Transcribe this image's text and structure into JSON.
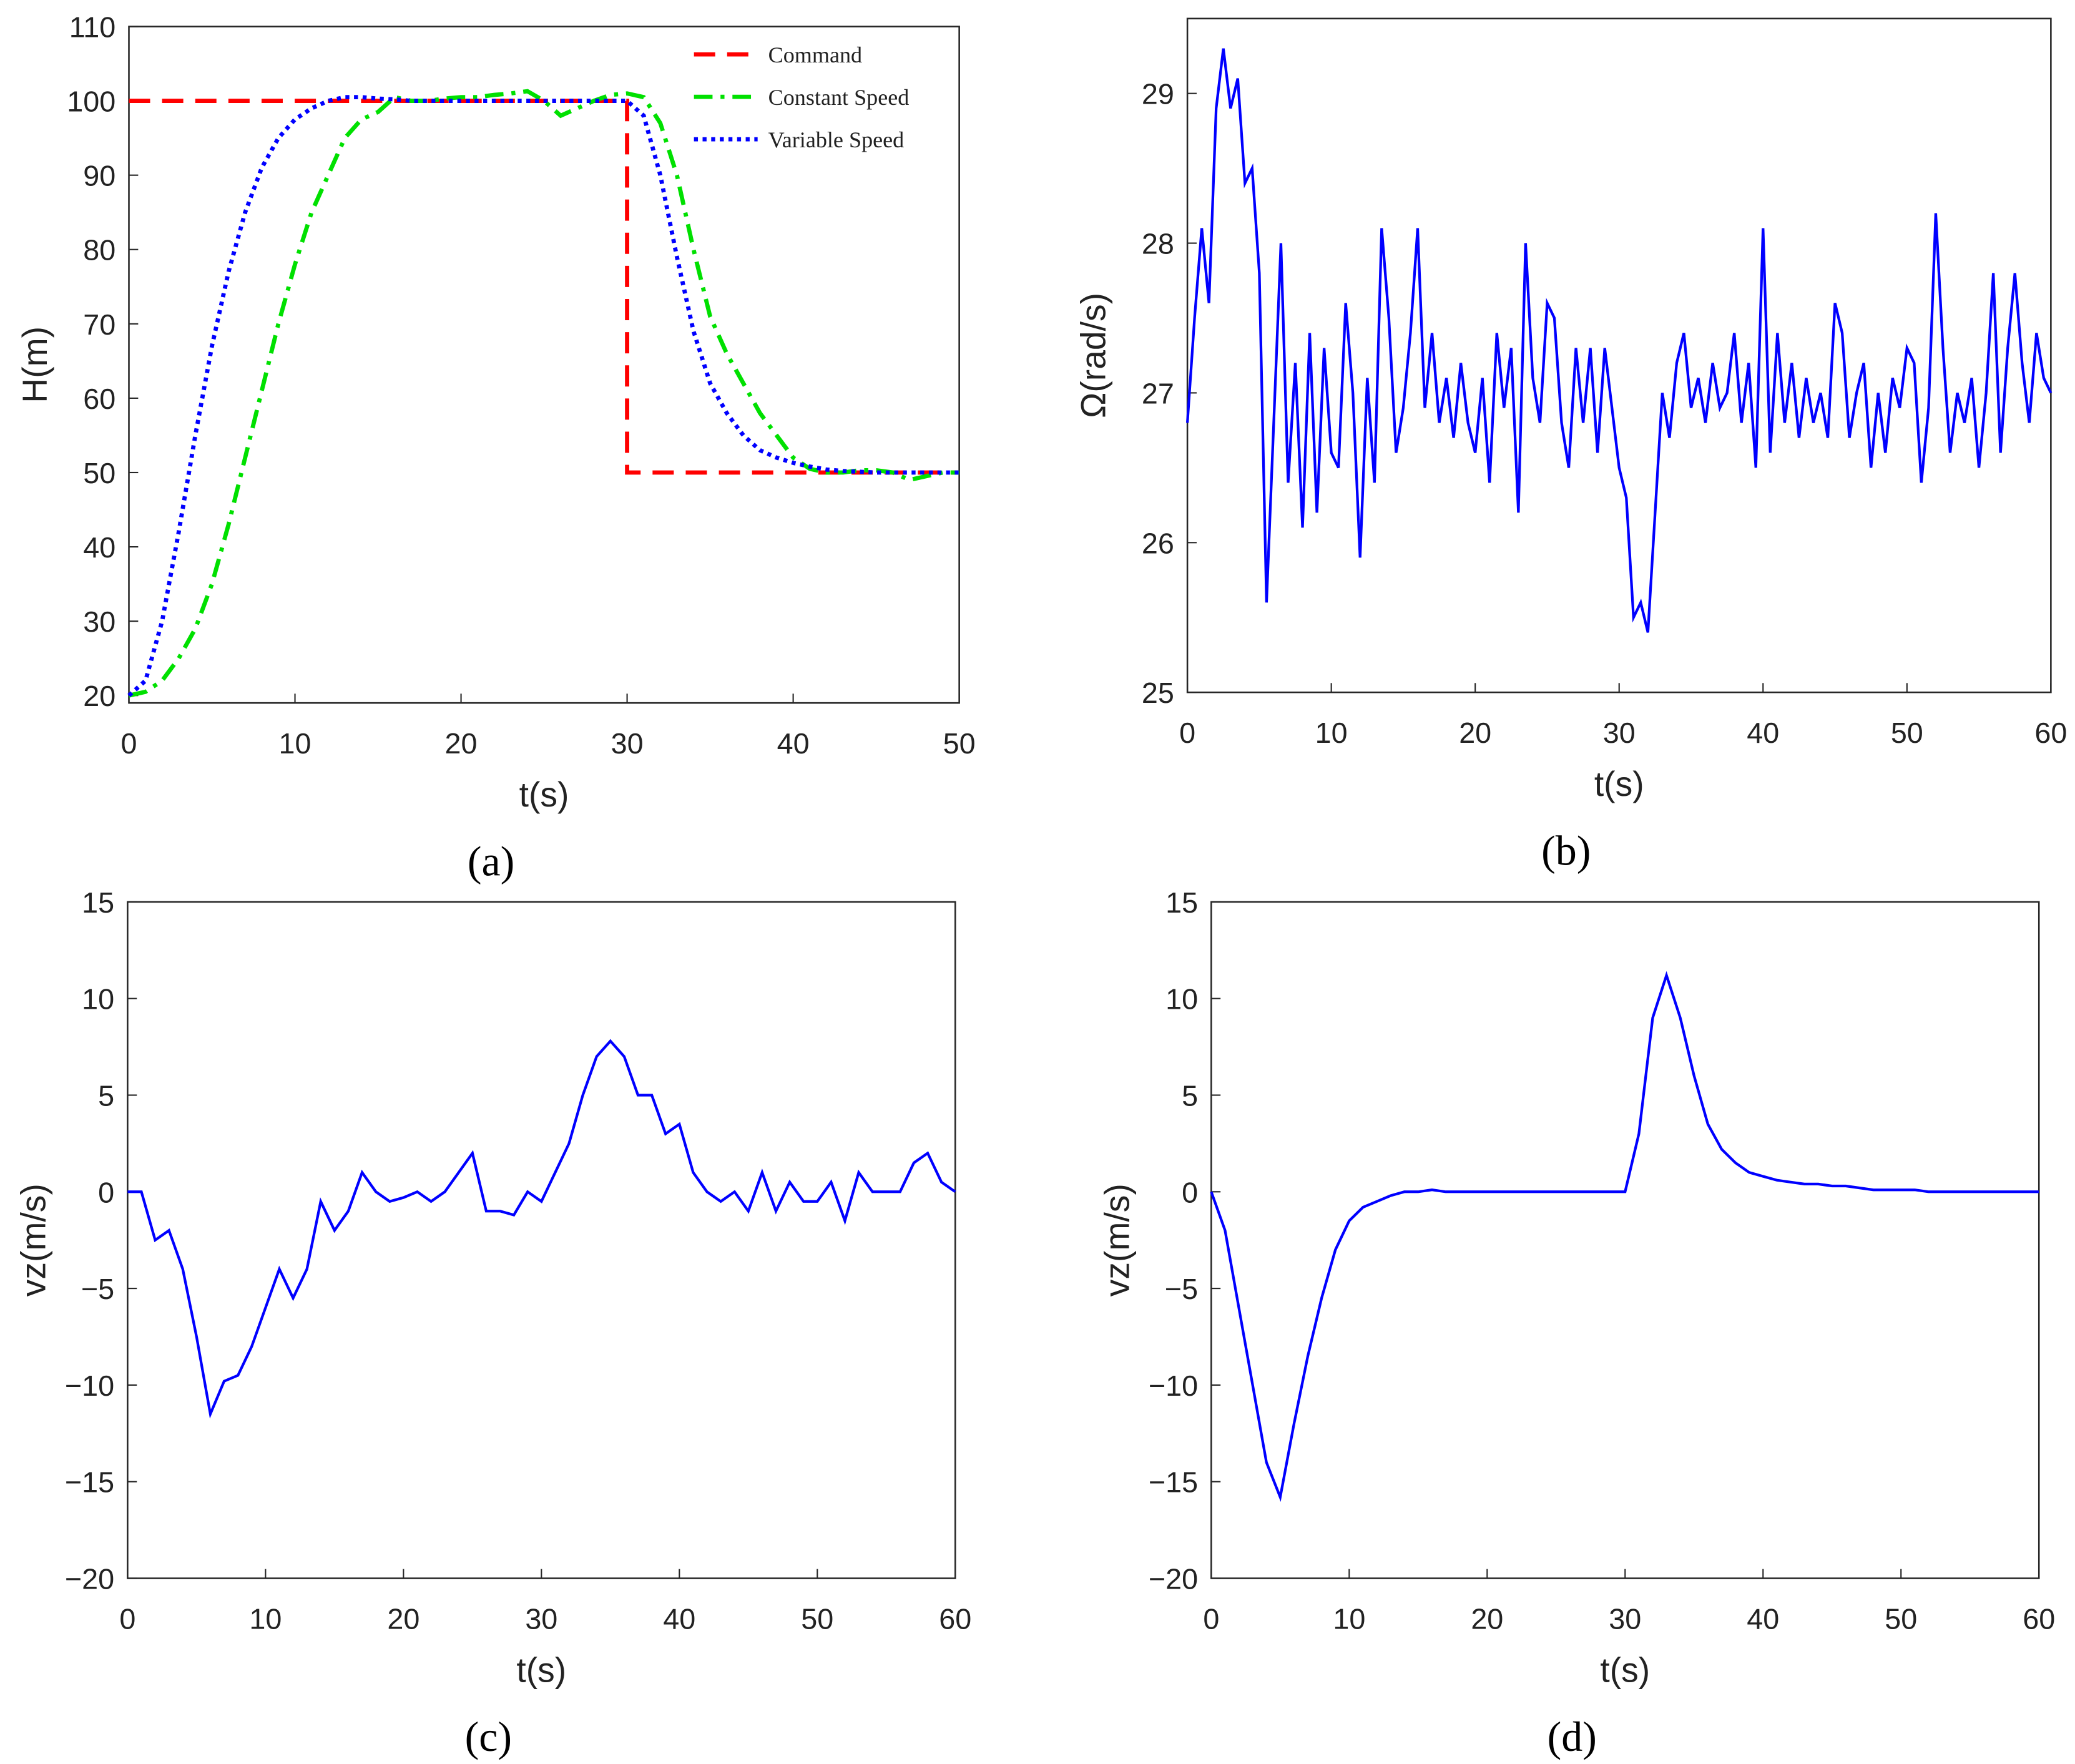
{
  "chart_data": [
    {
      "type": "line",
      "caption": "(a)",
      "xlabel": "t(s)",
      "ylabel": "H(m)",
      "x": [
        0,
        1,
        2,
        3,
        4,
        5,
        6,
        7,
        8,
        9,
        10,
        11,
        12,
        13,
        14,
        15,
        16,
        17,
        18,
        19,
        20,
        21,
        22,
        23,
        24,
        25,
        26,
        27,
        28,
        29,
        30,
        31,
        32,
        33,
        34,
        35,
        36,
        37,
        38,
        39,
        40,
        41,
        42,
        43,
        44,
        45,
        46,
        47,
        48,
        49,
        50
      ],
      "series": [
        {
          "name": "Command",
          "color": "#ff0000",
          "dash": "dashed",
          "x": [
            0,
            30,
            30,
            50
          ],
          "values": [
            100,
            100,
            50,
            50
          ]
        },
        {
          "name": "Constant Speed",
          "color": "#00e000",
          "dash": "dashdot",
          "values": [
            20,
            20.5,
            22,
            25,
            29,
            35,
            43,
            52,
            61,
            70,
            78,
            85,
            90,
            95,
            97.5,
            98.5,
            100.5,
            100,
            100,
            100.3,
            100.5,
            100.5,
            100.8,
            101,
            101.3,
            100,
            98,
            99,
            100,
            100.8,
            101,
            100.5,
            97,
            90,
            80,
            71,
            66,
            62,
            58,
            55,
            52,
            50.5,
            50,
            50,
            50.3,
            50.3,
            50,
            49,
            49.5,
            50,
            50
          ]
        },
        {
          "name": "Variable Speed",
          "color": "#0000ff",
          "dash": "dotted",
          "values": [
            20,
            22,
            30,
            42,
            55,
            67,
            77,
            85,
            91,
            95,
            97.5,
            99,
            100,
            100.5,
            100.5,
            100.3,
            100.2,
            100,
            100,
            100,
            100,
            100,
            100,
            100,
            100,
            100,
            100,
            100,
            100,
            100,
            100,
            98,
            90,
            79,
            69,
            62,
            58,
            55,
            53,
            52,
            51.3,
            50.8,
            50.4,
            50.2,
            50.1,
            50,
            50,
            50,
            50,
            50,
            50
          ]
        }
      ],
      "xlim": [
        0,
        50
      ],
      "ylim": [
        19,
        110
      ],
      "xticks": [
        0,
        10,
        20,
        30,
        40,
        50
      ],
      "yticks": [
        20,
        30,
        40,
        50,
        60,
        70,
        80,
        90,
        100,
        110
      ],
      "legend": "upper right"
    },
    {
      "type": "line",
      "caption": "(b)",
      "xlabel": "t(s)",
      "ylabel": "Ω(rad/s)",
      "color": "#0000ff",
      "dash": "solid",
      "x": [
        0,
        0.5,
        1,
        1.5,
        2,
        2.5,
        3,
        3.5,
        4,
        4.5,
        5,
        5.5,
        6,
        6.5,
        7,
        7.5,
        8,
        8.5,
        9,
        9.5,
        10,
        10.5,
        11,
        11.5,
        12,
        12.5,
        13,
        13.5,
        14,
        14.5,
        15,
        15.5,
        16,
        16.5,
        17,
        17.5,
        18,
        18.5,
        19,
        19.5,
        20,
        20.5,
        21,
        21.5,
        22,
        22.5,
        23,
        23.5,
        24,
        24.5,
        25,
        25.5,
        26,
        26.5,
        27,
        27.5,
        28,
        28.5,
        29,
        29.5,
        30,
        30.5,
        31,
        31.5,
        32,
        32.5,
        33,
        33.5,
        34,
        34.5,
        35,
        35.5,
        36,
        36.5,
        37,
        37.5,
        38,
        38.5,
        39,
        39.5,
        40,
        40.5,
        41,
        41.5,
        42,
        42.5,
        43,
        43.5,
        44,
        44.5,
        45,
        45.5,
        46,
        46.5,
        47,
        47.5,
        48,
        48.5,
        49,
        49.5,
        50,
        50.5,
        51,
        51.5,
        52,
        52.5,
        53,
        53.5,
        54,
        54.5,
        55,
        55.5,
        56,
        56.5,
        57,
        57.5,
        58,
        58.5,
        59,
        59.5,
        60
      ],
      "values": [
        26.8,
        27.5,
        28.1,
        27.6,
        28.9,
        29.3,
        28.9,
        29.1,
        28.4,
        28.5,
        27.8,
        25.6,
        26.8,
        28.0,
        26.4,
        27.2,
        26.1,
        27.4,
        26.2,
        27.3,
        26.6,
        26.5,
        27.6,
        27.0,
        25.9,
        27.1,
        26.4,
        28.1,
        27.5,
        26.6,
        26.9,
        27.4,
        28.1,
        26.9,
        27.4,
        26.8,
        27.1,
        26.7,
        27.2,
        26.8,
        26.6,
        27.1,
        26.4,
        27.4,
        26.9,
        27.3,
        26.2,
        28.0,
        27.1,
        26.8,
        27.6,
        27.5,
        26.8,
        26.5,
        27.3,
        26.8,
        27.3,
        26.6,
        27.3,
        26.9,
        26.5,
        26.3,
        25.5,
        25.6,
        25.4,
        26.2,
        27.0,
        26.7,
        27.2,
        27.4,
        26.9,
        27.1,
        26.8,
        27.2,
        26.9,
        27.0,
        27.4,
        26.8,
        27.2,
        26.5,
        28.1,
        26.6,
        27.4,
        26.8,
        27.2,
        26.7,
        27.1,
        26.8,
        27.0,
        26.7,
        27.6,
        27.4,
        26.7,
        27.0,
        27.2,
        26.5,
        27.0,
        26.6,
        27.1,
        26.9,
        27.3,
        27.2,
        26.4,
        26.9,
        28.2,
        27.3,
        26.6,
        27.0,
        26.8,
        27.1,
        26.5,
        27.0,
        27.8,
        26.6,
        27.3,
        27.8,
        27.2,
        26.8,
        27.4,
        27.1,
        27.0
      ],
      "xlim": [
        0,
        60
      ],
      "ylim": [
        25,
        29.5
      ],
      "xticks": [
        0,
        10,
        20,
        30,
        40,
        50,
        60
      ],
      "yticks": [
        25,
        26,
        27,
        28,
        29
      ]
    },
    {
      "type": "line",
      "caption": "(c)",
      "xlabel": "t(s)",
      "ylabel": "vz(m/s)",
      "color": "#0000ff",
      "dash": "solid",
      "x": [
        0,
        1,
        2,
        3,
        4,
        5,
        6,
        7,
        8,
        9,
        10,
        11,
        12,
        13,
        14,
        15,
        16,
        17,
        18,
        19,
        20,
        21,
        22,
        23,
        24,
        25,
        26,
        27,
        28,
        29,
        30,
        31,
        32,
        33,
        34,
        35,
        36,
        37,
        38,
        39,
        40,
        41,
        42,
        43,
        44,
        45,
        46,
        47,
        48,
        49,
        50,
        51,
        52,
        53,
        54,
        55,
        56,
        57,
        58,
        59,
        60
      ],
      "values": [
        0,
        0,
        -2.5,
        -2,
        -4,
        -7.5,
        -11.5,
        -9.8,
        -9.5,
        -8,
        -6,
        -4,
        -5.5,
        -4,
        -0.5,
        -2,
        -1,
        1,
        0,
        -0.5,
        -0.3,
        0,
        -0.5,
        0,
        1,
        2,
        -1,
        -1,
        -1.2,
        0,
        -0.5,
        1,
        2.5,
        5,
        7,
        7.8,
        7,
        5,
        5,
        3,
        3.5,
        1,
        0,
        -0.5,
        0,
        -1,
        1,
        -1,
        0.5,
        -0.5,
        -0.5,
        0.5,
        -1.5,
        1,
        0,
        0,
        0,
        1.5,
        2,
        0.5,
        0
      ],
      "xlim": [
        0,
        60
      ],
      "ylim": [
        -20,
        15
      ],
      "xticks": [
        0,
        10,
        20,
        30,
        40,
        50,
        60
      ],
      "yticks": [
        {
          "value": -20,
          "label": "−20"
        },
        {
          "value": -15,
          "label": "−15"
        },
        {
          "value": -10,
          "label": "−10"
        },
        {
          "value": -5,
          "label": "−5"
        },
        0,
        5,
        10,
        15
      ]
    },
    {
      "type": "line",
      "caption": "(d)",
      "xlabel": "t(s)",
      "ylabel": "vz(m/s)",
      "color": "#0000ff",
      "dash": "solid",
      "x": [
        0,
        1,
        2,
        3,
        4,
        5,
        6,
        7,
        8,
        9,
        10,
        11,
        12,
        13,
        14,
        15,
        16,
        17,
        18,
        19,
        20,
        21,
        22,
        23,
        24,
        25,
        26,
        27,
        28,
        29,
        30,
        31,
        32,
        33,
        34,
        35,
        36,
        37,
        38,
        39,
        40,
        41,
        42,
        43,
        44,
        45,
        46,
        47,
        48,
        49,
        50,
        51,
        52,
        53,
        54,
        55,
        56,
        57,
        58,
        59,
        60
      ],
      "values": [
        0,
        -2,
        -6,
        -10,
        -14,
        -15.8,
        -12,
        -8.5,
        -5.5,
        -3,
        -1.5,
        -0.8,
        -0.5,
        -0.2,
        0,
        0,
        0.1,
        0,
        0,
        0,
        0,
        0,
        0,
        0,
        0,
        0,
        0,
        0,
        0,
        0,
        0,
        3,
        9,
        11.2,
        9,
        6,
        3.5,
        2.2,
        1.5,
        1,
        0.8,
        0.6,
        0.5,
        0.4,
        0.4,
        0.3,
        0.3,
        0.2,
        0.1,
        0.1,
        0.1,
        0.1,
        0,
        0,
        0,
        0,
        0,
        0,
        0,
        0,
        0
      ],
      "xlim": [
        0,
        60
      ],
      "ylim": [
        -20,
        15
      ],
      "xticks": [
        0,
        10,
        20,
        30,
        40,
        50,
        60
      ],
      "yticks": [
        {
          "value": -20,
          "label": "−20"
        },
        {
          "value": -15,
          "label": "−15"
        },
        {
          "value": -10,
          "label": "−10"
        },
        {
          "value": -5,
          "label": "−5"
        },
        0,
        5,
        10,
        15
      ]
    }
  ]
}
